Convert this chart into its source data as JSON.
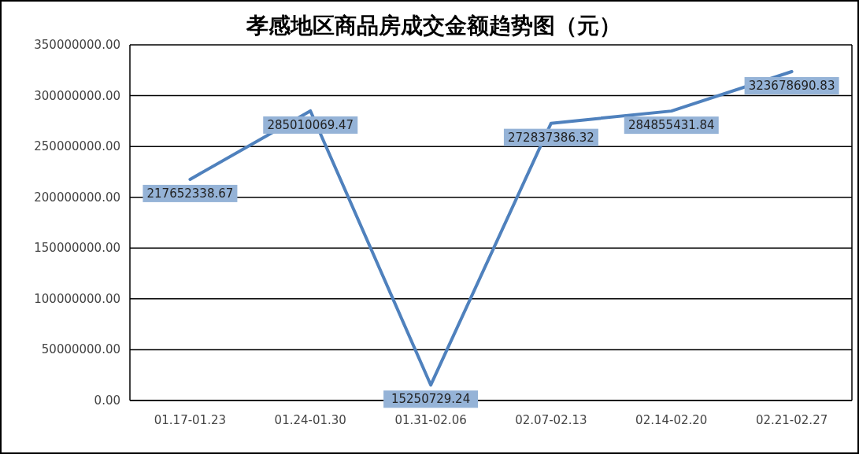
{
  "chart_data": {
    "type": "line",
    "title": "孝感地区商品房成交金额趋势图（元）",
    "categories": [
      "01.17-01.23",
      "01.24-01.30",
      "01.31-02.06",
      "02.07-02.13",
      "02.14-02.20",
      "02.21-02.27"
    ],
    "series": [
      {
        "color": "#4f81bd",
        "values": [
          217652338.67,
          285010069.47,
          15250729.24,
          272837386.32,
          284855431.84,
          323678690.83
        ]
      }
    ],
    "ylim": [
      0,
      350000000
    ],
    "yticks": [
      {
        "value": 0,
        "label": "0.00"
      },
      {
        "value": 50000000,
        "label": "50000000.00"
      },
      {
        "value": 100000000,
        "label": "100000000.00"
      },
      {
        "value": 150000000,
        "label": "150000000.00"
      },
      {
        "value": 200000000,
        "label": "200000000.00"
      },
      {
        "value": 250000000,
        "label": "250000000.00"
      },
      {
        "value": 300000000,
        "label": "300000000.00"
      },
      {
        "value": 350000000,
        "label": "350000000.00"
      }
    ],
    "grid": "y",
    "data_labels": true,
    "marker": "none",
    "line_style": "solid"
  }
}
